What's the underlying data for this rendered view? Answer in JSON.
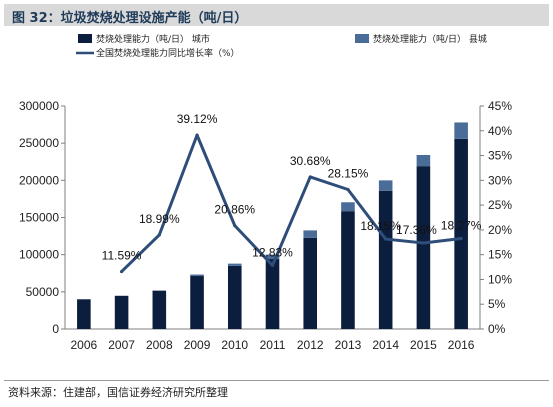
{
  "header": {
    "title": "图 32：垃圾焚烧处理设施产能（吨/日）"
  },
  "source": "资料来源：住建部，国信证券经济研究所整理",
  "colors": {
    "city_bar": "#0b1e3d",
    "county_bar": "#4a6c99",
    "growth_line": "#2e4d79",
    "header_bg": "#d9d9d9"
  },
  "chart_data": {
    "type": "bar",
    "categories": [
      "2006",
      "2007",
      "2008",
      "2009",
      "2010",
      "2011",
      "2012",
      "2013",
      "2014",
      "2015",
      "2016"
    ],
    "series": [
      {
        "name": "焚烧处理能力（吨/日） 城市",
        "type": "bar",
        "axis": "left",
        "values": [
          39966,
          44682,
          51606,
          71253,
          84940,
          94114,
          122649,
          158488,
          185957,
          219080,
          255850
        ]
      },
      {
        "name": "焚烧处理能力（吨/日） 县城",
        "type": "bar",
        "axis": "left",
        "values": [
          0,
          0,
          0,
          2000,
          3000,
          6000,
          10000,
          12000,
          14000,
          15000,
          22000
        ]
      },
      {
        "name": "全国焚烧处理能力同比增长率（%）",
        "type": "line",
        "axis": "right",
        "values": [
          null,
          11.59,
          18.99,
          39.12,
          20.86,
          12.83,
          30.68,
          28.15,
          18.15,
          17.36,
          18.27
        ],
        "labels": [
          "",
          "11.59%",
          "18.99%",
          "39.12%",
          "20.86%",
          "12.83%",
          "30.68%",
          "28.15%",
          "18.15%",
          "17.36%",
          "18.27%"
        ]
      }
    ],
    "y_left": {
      "min": 0,
      "max": 300000,
      "step": 50000,
      "ticks": [
        "0",
        "50000",
        "100000",
        "150000",
        "200000",
        "250000",
        "300000"
      ]
    },
    "y_right": {
      "min": 0,
      "max": 45,
      "step": 5,
      "ticks": [
        "0%",
        "5%",
        "10%",
        "15%",
        "20%",
        "25%",
        "30%",
        "35%",
        "40%",
        "45%"
      ]
    },
    "grid": false,
    "legend": "top"
  }
}
